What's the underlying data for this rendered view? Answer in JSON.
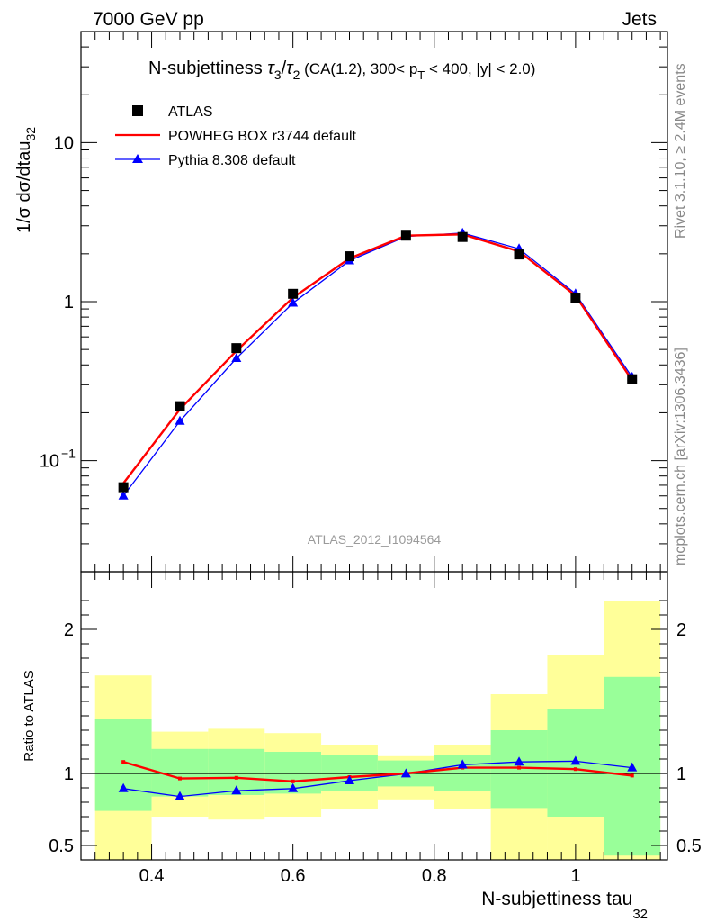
{
  "header": {
    "left": "7000 GeV pp",
    "right": "Jets"
  },
  "title": {
    "prefix": "N-subjettiness ",
    "tau3": "τ",
    "tau3_sub": "3",
    "slash": "/",
    "tau2": "τ",
    "tau2_sub": "2",
    "cuts_a": " (CA(1.2), 300< p",
    "cuts_sub": "T",
    "cuts_b": " < 400, |y| < 2.0)"
  },
  "side_labels": {
    "rivet": "Rivet 3.1.10, ≥ 2.4M events",
    "mcplots": "mcplots.cern.ch [arXiv:1306.3436]"
  },
  "watermark": "ATLAS_2012_I1094564",
  "colors": {
    "data": "#000000",
    "powheg": "#ff0000",
    "pythia": "#0000ff",
    "band_total": "#ffff99",
    "band_stat": "#99ff99"
  },
  "chart_data": [
    {
      "type": "scatter",
      "panel": "main",
      "ylabel": "1/σ dσ/dtau",
      "ylabel_sub": "32",
      "yscale": "log",
      "xlim": [
        0.3,
        1.13
      ],
      "ylim": [
        0.02,
        50
      ],
      "yticks": [
        {
          "value": 10,
          "label": "10",
          "exp": ""
        },
        {
          "value": 1,
          "label": "1",
          "exp": ""
        },
        {
          "value": 0.1,
          "label": "10",
          "exp": "−1"
        }
      ],
      "legend_position": "top-left",
      "x": [
        0.36,
        0.44,
        0.52,
        0.6,
        0.68,
        0.76,
        0.84,
        0.92,
        1.0,
        1.08
      ],
      "series": [
        {
          "name": "ATLAS",
          "marker": "square",
          "values": [
            0.068,
            0.22,
            0.51,
            1.12,
            1.93,
            2.6,
            2.55,
            1.98,
            1.06,
            0.325
          ]
        },
        {
          "name": "POWHEG BOX r3744 default",
          "marker": "line",
          "values": [
            0.072,
            0.21,
            0.49,
            1.06,
            1.87,
            2.6,
            2.65,
            2.07,
            1.09,
            0.32
          ]
        },
        {
          "name": "Pythia 8.308 default",
          "marker": "triangle",
          "values": [
            0.06,
            0.177,
            0.44,
            0.98,
            1.81,
            2.57,
            2.7,
            2.15,
            1.12,
            0.335
          ]
        }
      ]
    },
    {
      "type": "line",
      "panel": "ratio",
      "ylabel": "Ratio to ATLAS",
      "xlabel": "N-subjettiness tau",
      "xlabel_sub": "32",
      "xlim": [
        0.3,
        1.13
      ],
      "ylim": [
        0.4,
        2.4
      ],
      "xticks": [
        {
          "value": 0.4,
          "label": "0.4"
        },
        {
          "value": 0.6,
          "label": "0.6"
        },
        {
          "value": 0.8,
          "label": "0.8"
        },
        {
          "value": 1.0,
          "label": "1"
        }
      ],
      "yticks": [
        {
          "value": 0.5,
          "label": "0.5"
        },
        {
          "value": 1,
          "label": "1"
        },
        {
          "value": 2,
          "label": "2"
        }
      ],
      "bins": [
        [
          0.32,
          0.4
        ],
        [
          0.4,
          0.48
        ],
        [
          0.48,
          0.56
        ],
        [
          0.56,
          0.64
        ],
        [
          0.64,
          0.72
        ],
        [
          0.72,
          0.8
        ],
        [
          0.8,
          0.88
        ],
        [
          0.88,
          0.96
        ],
        [
          0.96,
          1.04
        ],
        [
          1.04,
          1.12
        ]
      ],
      "band_total": [
        [
          0.3,
          1.68
        ],
        [
          0.7,
          1.29
        ],
        [
          0.68,
          1.31
        ],
        [
          0.7,
          1.28
        ],
        [
          0.75,
          1.2
        ],
        [
          0.82,
          1.12
        ],
        [
          0.75,
          1.2
        ],
        [
          0.4,
          1.55
        ],
        [
          0.3,
          1.82
        ],
        [
          0.3,
          2.2
        ]
      ],
      "band_stat": [
        [
          0.74,
          1.38
        ],
        [
          0.84,
          1.17
        ],
        [
          0.85,
          1.17
        ],
        [
          0.86,
          1.15
        ],
        [
          0.88,
          1.13
        ],
        [
          0.91,
          1.09
        ],
        [
          0.88,
          1.13
        ],
        [
          0.76,
          1.3
        ],
        [
          0.7,
          1.45
        ],
        [
          0.43,
          1.67
        ]
      ],
      "x": [
        0.36,
        0.44,
        0.52,
        0.6,
        0.68,
        0.76,
        0.84,
        0.92,
        1.0,
        1.08
      ],
      "series": [
        {
          "name": "POWHEG BOX r3744 default",
          "values": [
            1.08,
            0.965,
            0.97,
            0.945,
            0.975,
            1.0,
            1.04,
            1.04,
            1.03,
            0.985
          ]
        },
        {
          "name": "Pythia 8.308 default",
          "values": [
            0.895,
            0.84,
            0.88,
            0.895,
            0.95,
            0.998,
            1.06,
            1.08,
            1.085,
            1.04
          ]
        }
      ]
    }
  ]
}
